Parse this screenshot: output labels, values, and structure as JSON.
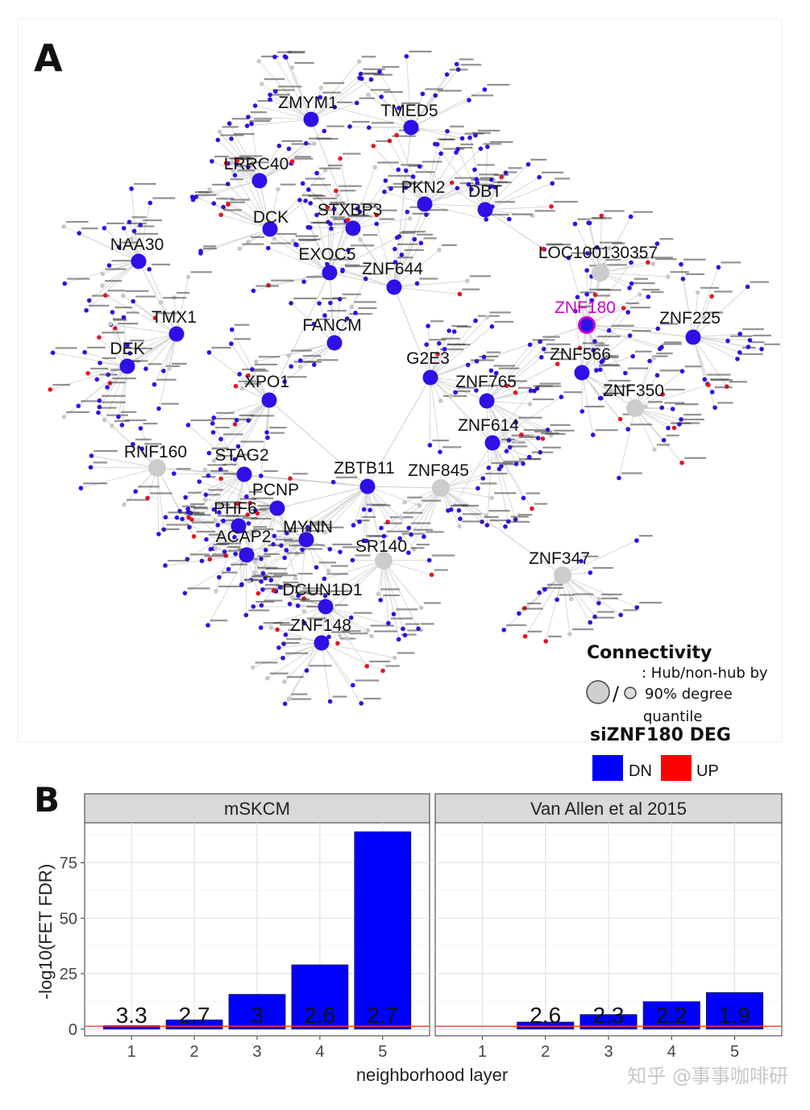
{
  "network": {
    "panel_label": "A",
    "hubs": [
      {
        "name": "ZMYM1",
        "color": "#2d10e6"
      },
      {
        "name": "TMED5",
        "color": "#2d10e6"
      },
      {
        "name": "LRRC40",
        "color": "#2d10e6"
      },
      {
        "name": "PKN2",
        "color": "#2d10e6"
      },
      {
        "name": "DBT",
        "color": "#2d10e6"
      },
      {
        "name": "DCK",
        "color": "#2d10e6"
      },
      {
        "name": "STXBP3",
        "color": "#2d10e6"
      },
      {
        "name": "NAA30",
        "color": "#2d10e6"
      },
      {
        "name": "EXOC5",
        "color": "#2d10e6"
      },
      {
        "name": "ZNF644",
        "color": "#2d10e6"
      },
      {
        "name": "LOC100130357",
        "color": "#cccccc"
      },
      {
        "name": "ZNF180",
        "color": "#2d10e6",
        "highlight": "#cc00cc"
      },
      {
        "name": "TMX1",
        "color": "#2d10e6"
      },
      {
        "name": "ZNF225",
        "color": "#2d10e6"
      },
      {
        "name": "DEK",
        "color": "#2d10e6"
      },
      {
        "name": "FANCM",
        "color": "#2d10e6"
      },
      {
        "name": "ZNF566",
        "color": "#2d10e6"
      },
      {
        "name": "G2E3",
        "color": "#2d10e6"
      },
      {
        "name": "ZNF765",
        "color": "#2d10e6"
      },
      {
        "name": "ZNF350",
        "color": "#cccccc"
      },
      {
        "name": "XPO1",
        "color": "#2d10e6"
      },
      {
        "name": "ZNF614",
        "color": "#2d10e6"
      },
      {
        "name": "RNF160",
        "color": "#cccccc"
      },
      {
        "name": "STAG2",
        "color": "#2d10e6"
      },
      {
        "name": "ZBTB11",
        "color": "#2d10e6"
      },
      {
        "name": "ZNF845",
        "color": "#cccccc"
      },
      {
        "name": "PCNP",
        "color": "#2d10e6"
      },
      {
        "name": "PHF6",
        "color": "#2d10e6"
      },
      {
        "name": "MYNN",
        "color": "#2d10e6"
      },
      {
        "name": "ACAP2",
        "color": "#2d10e6"
      },
      {
        "name": "SR140",
        "color": "#cccccc"
      },
      {
        "name": "ZNF347",
        "color": "#cccccc"
      },
      {
        "name": "DCUN1D1",
        "color": "#2d10e6"
      },
      {
        "name": "ZNF148",
        "color": "#2d10e6"
      }
    ],
    "legend": {
      "connectivity_title": "Connectivity",
      "connectivity_desc_1": ": Hub/non-hub by",
      "connectivity_desc_2": "90% degree",
      "connectivity_desc_3": "quantile",
      "deg_title": "siZNF180 DEG",
      "dn_label": "DN",
      "up_label": "UP",
      "dn_color": "#0000ff",
      "up_color": "#ff0000",
      "slash": "/"
    }
  },
  "chart_data": {
    "type": "bar",
    "panel_label": "B",
    "xlabel": "neighborhood layer",
    "ylabel": "-log10(FET FDR)",
    "ylim": [
      -3,
      93
    ],
    "yticks": [
      0,
      25,
      50,
      75
    ],
    "categories": [
      "1",
      "2",
      "3",
      "4",
      "5"
    ],
    "bar_color": "#0000ff",
    "threshold_color": "#e8413a",
    "threshold_value": 1.3,
    "grid": true,
    "facets": [
      {
        "title": "mSKCM",
        "values": [
          1.6,
          4.2,
          15.7,
          29,
          89
        ],
        "labels": [
          "3.3",
          "2.7",
          "3",
          "2.6",
          "2.7"
        ]
      },
      {
        "title": "Van Allen et al 2015",
        "values": [
          null,
          3.2,
          6.6,
          12.4,
          16.5
        ],
        "labels": [
          "",
          "2.6",
          "2.3",
          "2.2",
          "1.9"
        ]
      }
    ]
  },
  "watermark": "知乎 @事事咖啡研"
}
